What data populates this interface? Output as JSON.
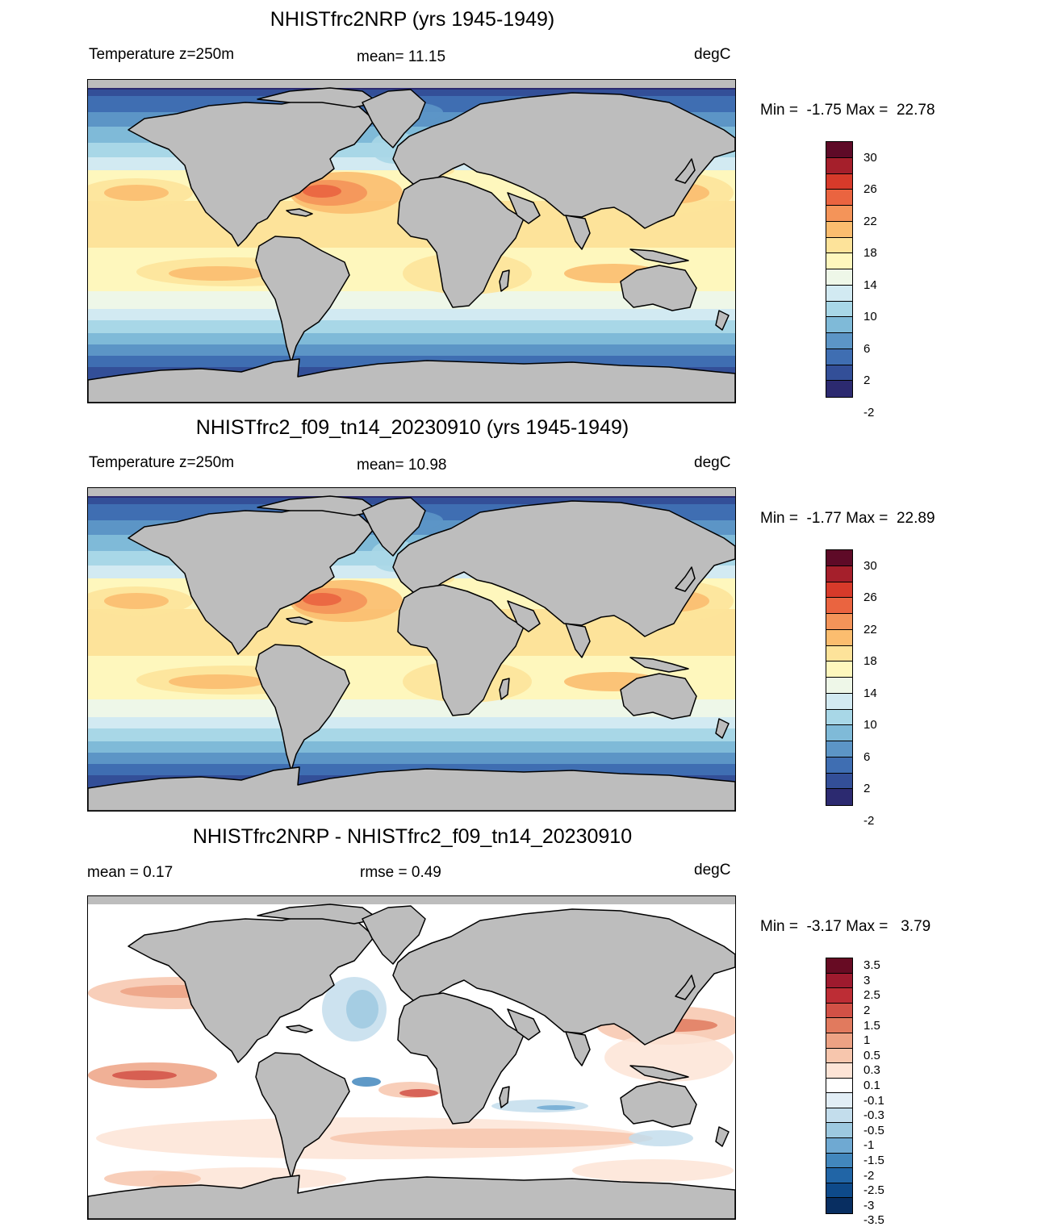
{
  "panels": [
    {
      "title": "NHISTfrc2NRP (yrs 1945-1949)",
      "left_label": "Temperature z=250m",
      "center_label": "mean=  11.15",
      "right_label": "degC",
      "minmax": "Min =  -1.75 Max =  22.78",
      "scale": "temp"
    },
    {
      "title": "NHISTfrc2_f09_tn14_20230910 (yrs 1945-1949)",
      "left_label": "Temperature z=250m",
      "center_label": "mean=  10.98",
      "right_label": "degC",
      "minmax": "Min =  -1.77 Max =  22.89",
      "scale": "temp"
    },
    {
      "title": "NHISTfrc2NRP - NHISTfrc2_f09_tn14_20230910",
      "left_label": "mean =   0.17",
      "center_label": "rmse =   0.49",
      "right_label": "degC",
      "minmax": "Min =  -3.17 Max =   3.79",
      "scale": "diff"
    }
  ],
  "colorbars": {
    "temp": {
      "colors": [
        "#5e0a27",
        "#a51f2b",
        "#d73a2a",
        "#ea6440",
        "#f49459",
        "#fbbd6f",
        "#fde39a",
        "#fef7bd",
        "#eef7e8",
        "#d2eaf2",
        "#a8d7e7",
        "#7fbad8",
        "#5c95c6",
        "#3f6eb2",
        "#334f98",
        "#2c2a70"
      ],
      "labels": [
        "30",
        "26",
        "22",
        "18",
        "14",
        "10",
        "6",
        "2",
        "-2"
      ]
    },
    "diff": {
      "colors": [
        "#670b23",
        "#9e1a2e",
        "#bd2d35",
        "#d25146",
        "#e17a5e",
        "#eda284",
        "#f7c6ad",
        "#fde4d6",
        "#ffffff",
        "#e2eef6",
        "#c3ddec",
        "#9dc9e0",
        "#6fa9d2",
        "#4287bd",
        "#2165a6",
        "#0e4a8a",
        "#082e61"
      ],
      "labels": [
        "3.5",
        "3",
        "2.5",
        "2",
        "1.5",
        "1",
        "0.5",
        "0.3",
        "0.1",
        "-0.1",
        "-0.3",
        "-0.5",
        "-1",
        "-1.5",
        "-2",
        "-2.5",
        "-3",
        "-3.5"
      ]
    }
  }
}
